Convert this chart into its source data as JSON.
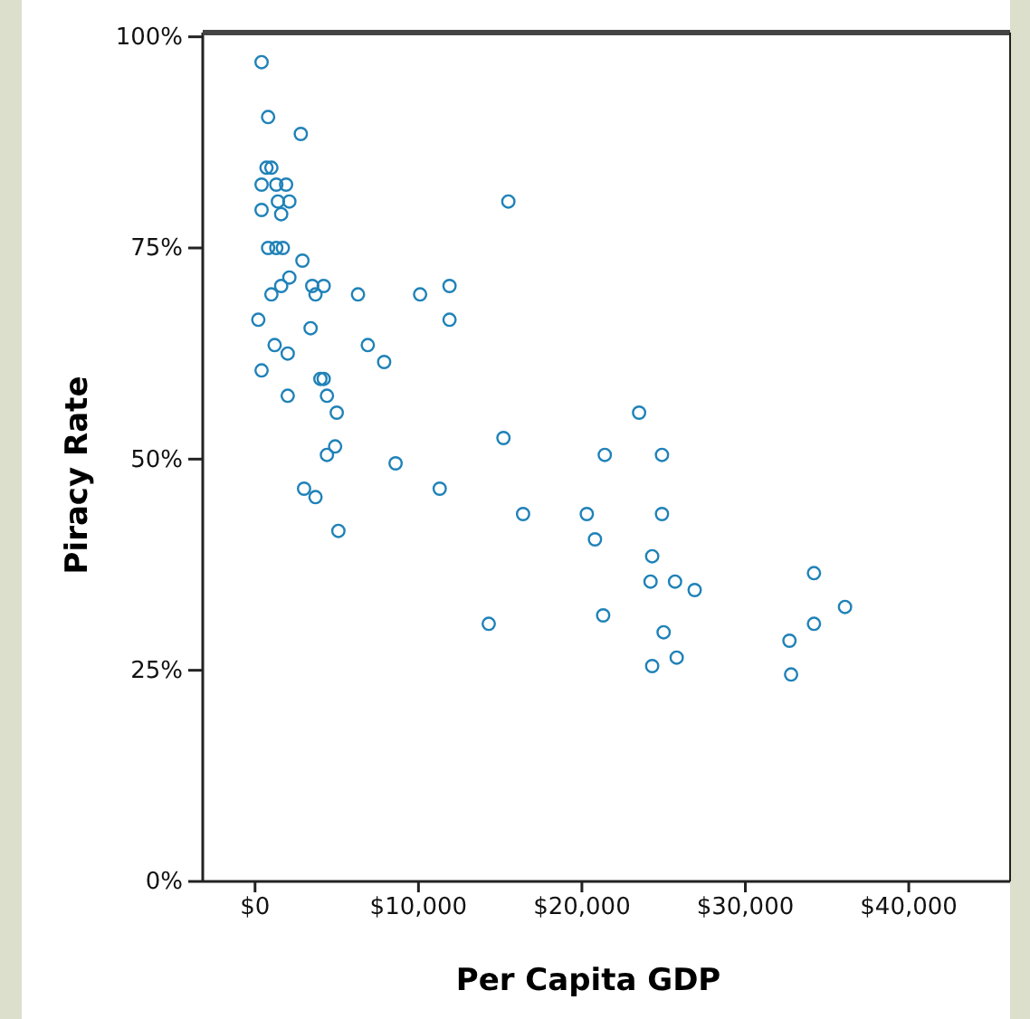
{
  "chart_data": {
    "type": "scatter",
    "xlabel": "Per Capita GDP",
    "ylabel": "Piracy Rate",
    "xlim": [
      -3200,
      46200
    ],
    "ylim": [
      0,
      100.5
    ],
    "xticks": [
      {
        "value": 0,
        "label": "$0"
      },
      {
        "value": 10000,
        "label": "$10,000"
      },
      {
        "value": 20000,
        "label": "$20,000"
      },
      {
        "value": 30000,
        "label": "$30,000"
      },
      {
        "value": 40000,
        "label": "$40,000"
      }
    ],
    "yticks": [
      {
        "value": 0,
        "label": "0%"
      },
      {
        "value": 25,
        "label": "25%"
      },
      {
        "value": 50,
        "label": "50%"
      },
      {
        "value": 75,
        "label": "75%"
      },
      {
        "value": 100,
        "label": "100%"
      }
    ],
    "grid": false,
    "marker": "circle",
    "series": [
      {
        "color": "#1f82b8",
        "x": [
          400,
          800,
          2800,
          700,
          1000,
          400,
          1300,
          1900,
          1400,
          2100,
          400,
          1600,
          800,
          1300,
          1700,
          2900,
          2100,
          1600,
          1000,
          3500,
          4200,
          3700,
          6300,
          10100,
          11900,
          11900,
          200,
          3400,
          1200,
          2000,
          6900,
          7900,
          400,
          4000,
          4200,
          2000,
          4400,
          5000,
          4900,
          4400,
          8600,
          3000,
          3700,
          5100,
          11300,
          15200,
          15500,
          16400,
          23500,
          21400,
          24900,
          20300,
          20800,
          24900,
          24300,
          24200,
          25700,
          14300,
          21300,
          25000,
          25800,
          24300,
          26900,
          34200,
          36100,
          34200,
          32700,
          32800
        ],
        "values": [
          97,
          90.5,
          88.5,
          84.5,
          84.5,
          82.5,
          82.5,
          82.5,
          80.5,
          80.5,
          79.5,
          79,
          75,
          75,
          75,
          73.5,
          71.5,
          70.5,
          69.5,
          70.5,
          70.5,
          69.5,
          69.5,
          69.5,
          70.5,
          66.5,
          66.5,
          65.5,
          63.5,
          62.5,
          63.5,
          61.5,
          60.5,
          59.5,
          59.5,
          57.5,
          57.5,
          55.5,
          51.5,
          50.5,
          49.5,
          46.5,
          45.5,
          41.5,
          46.5,
          52.5,
          80.5,
          43.5,
          55.5,
          50.5,
          50.5,
          43.5,
          40.5,
          43.5,
          38.5,
          35.5,
          35.5,
          30.5,
          31.5,
          29.5,
          26.5,
          25.5,
          34.5,
          36.5,
          32.5,
          30.5,
          28.5,
          24.5
        ]
      }
    ]
  }
}
